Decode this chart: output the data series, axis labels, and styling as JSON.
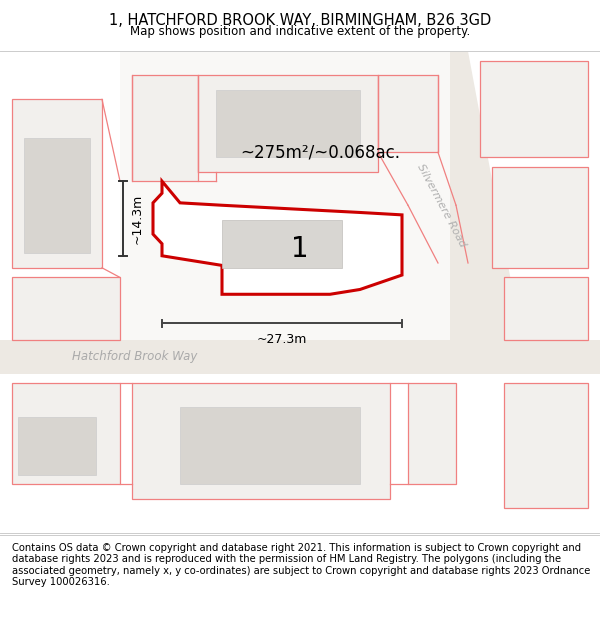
{
  "title": "1, HATCHFORD BROOK WAY, BIRMINGHAM, B26 3GD",
  "subtitle": "Map shows position and indicative extent of the property.",
  "footer": "Contains OS data © Crown copyright and database right 2021. This information is subject to Crown copyright and database rights 2023 and is reproduced with the permission of HM Land Registry. The polygons (including the associated geometry, namely x, y co-ordinates) are subject to Crown copyright and database rights 2023 Ordnance Survey 100026316.",
  "area_text": "~275m²/~0.068ac.",
  "plot_number": "1",
  "dim_width": "~27.3m",
  "dim_height": "~14.3m",
  "road_label_1": "Hatchford Brook Way",
  "road_label_2": "Silvermere Road",
  "title_fontsize": 10.5,
  "subtitle_fontsize": 8.5,
  "footer_fontsize": 7.2,
  "map_bg": "#f7f6f4",
  "road_fill": "#ede9e3",
  "pink": "#f08080",
  "red": "#cc0000",
  "gray_fill": "#d8d5d0",
  "white": "#ffffff",
  "dark": "#222222",
  "med_gray": "#aaaaaa"
}
